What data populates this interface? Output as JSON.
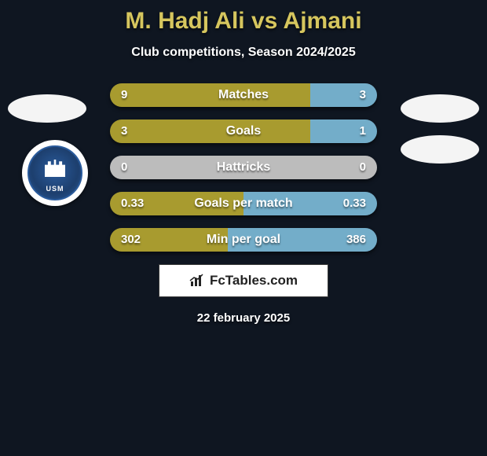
{
  "header": {
    "title": "M. Hadj Ali vs Ajmani",
    "subtitle": "Club competitions, Season 2024/2025",
    "title_color": "#d6c65e",
    "subtitle_color": "#ffffff"
  },
  "background_color": "#0f1621",
  "club_logo": {
    "abbrev": "USM",
    "primary_color": "#2a5b9c",
    "ring_color": "#ffffff"
  },
  "colors": {
    "left_player": "#a89b2f",
    "right_player": "#73adc9",
    "neutral": "#bcbcbc"
  },
  "stats": [
    {
      "label": "Matches",
      "left_val": "9",
      "right_val": "3",
      "left_pct": 75,
      "right_pct": 25
    },
    {
      "label": "Goals",
      "left_val": "3",
      "right_val": "1",
      "left_pct": 75,
      "right_pct": 25
    },
    {
      "label": "Hattricks",
      "left_val": "0",
      "right_val": "0",
      "left_pct": 50,
      "right_pct": 50,
      "neutral": true
    },
    {
      "label": "Goals per match",
      "left_val": "0.33",
      "right_val": "0.33",
      "left_pct": 50,
      "right_pct": 50
    },
    {
      "label": "Min per goal",
      "left_val": "302",
      "right_val": "386",
      "left_pct": 44,
      "right_pct": 56
    }
  ],
  "brand": {
    "text": "FcTables.com"
  },
  "date": "22 february 2025"
}
